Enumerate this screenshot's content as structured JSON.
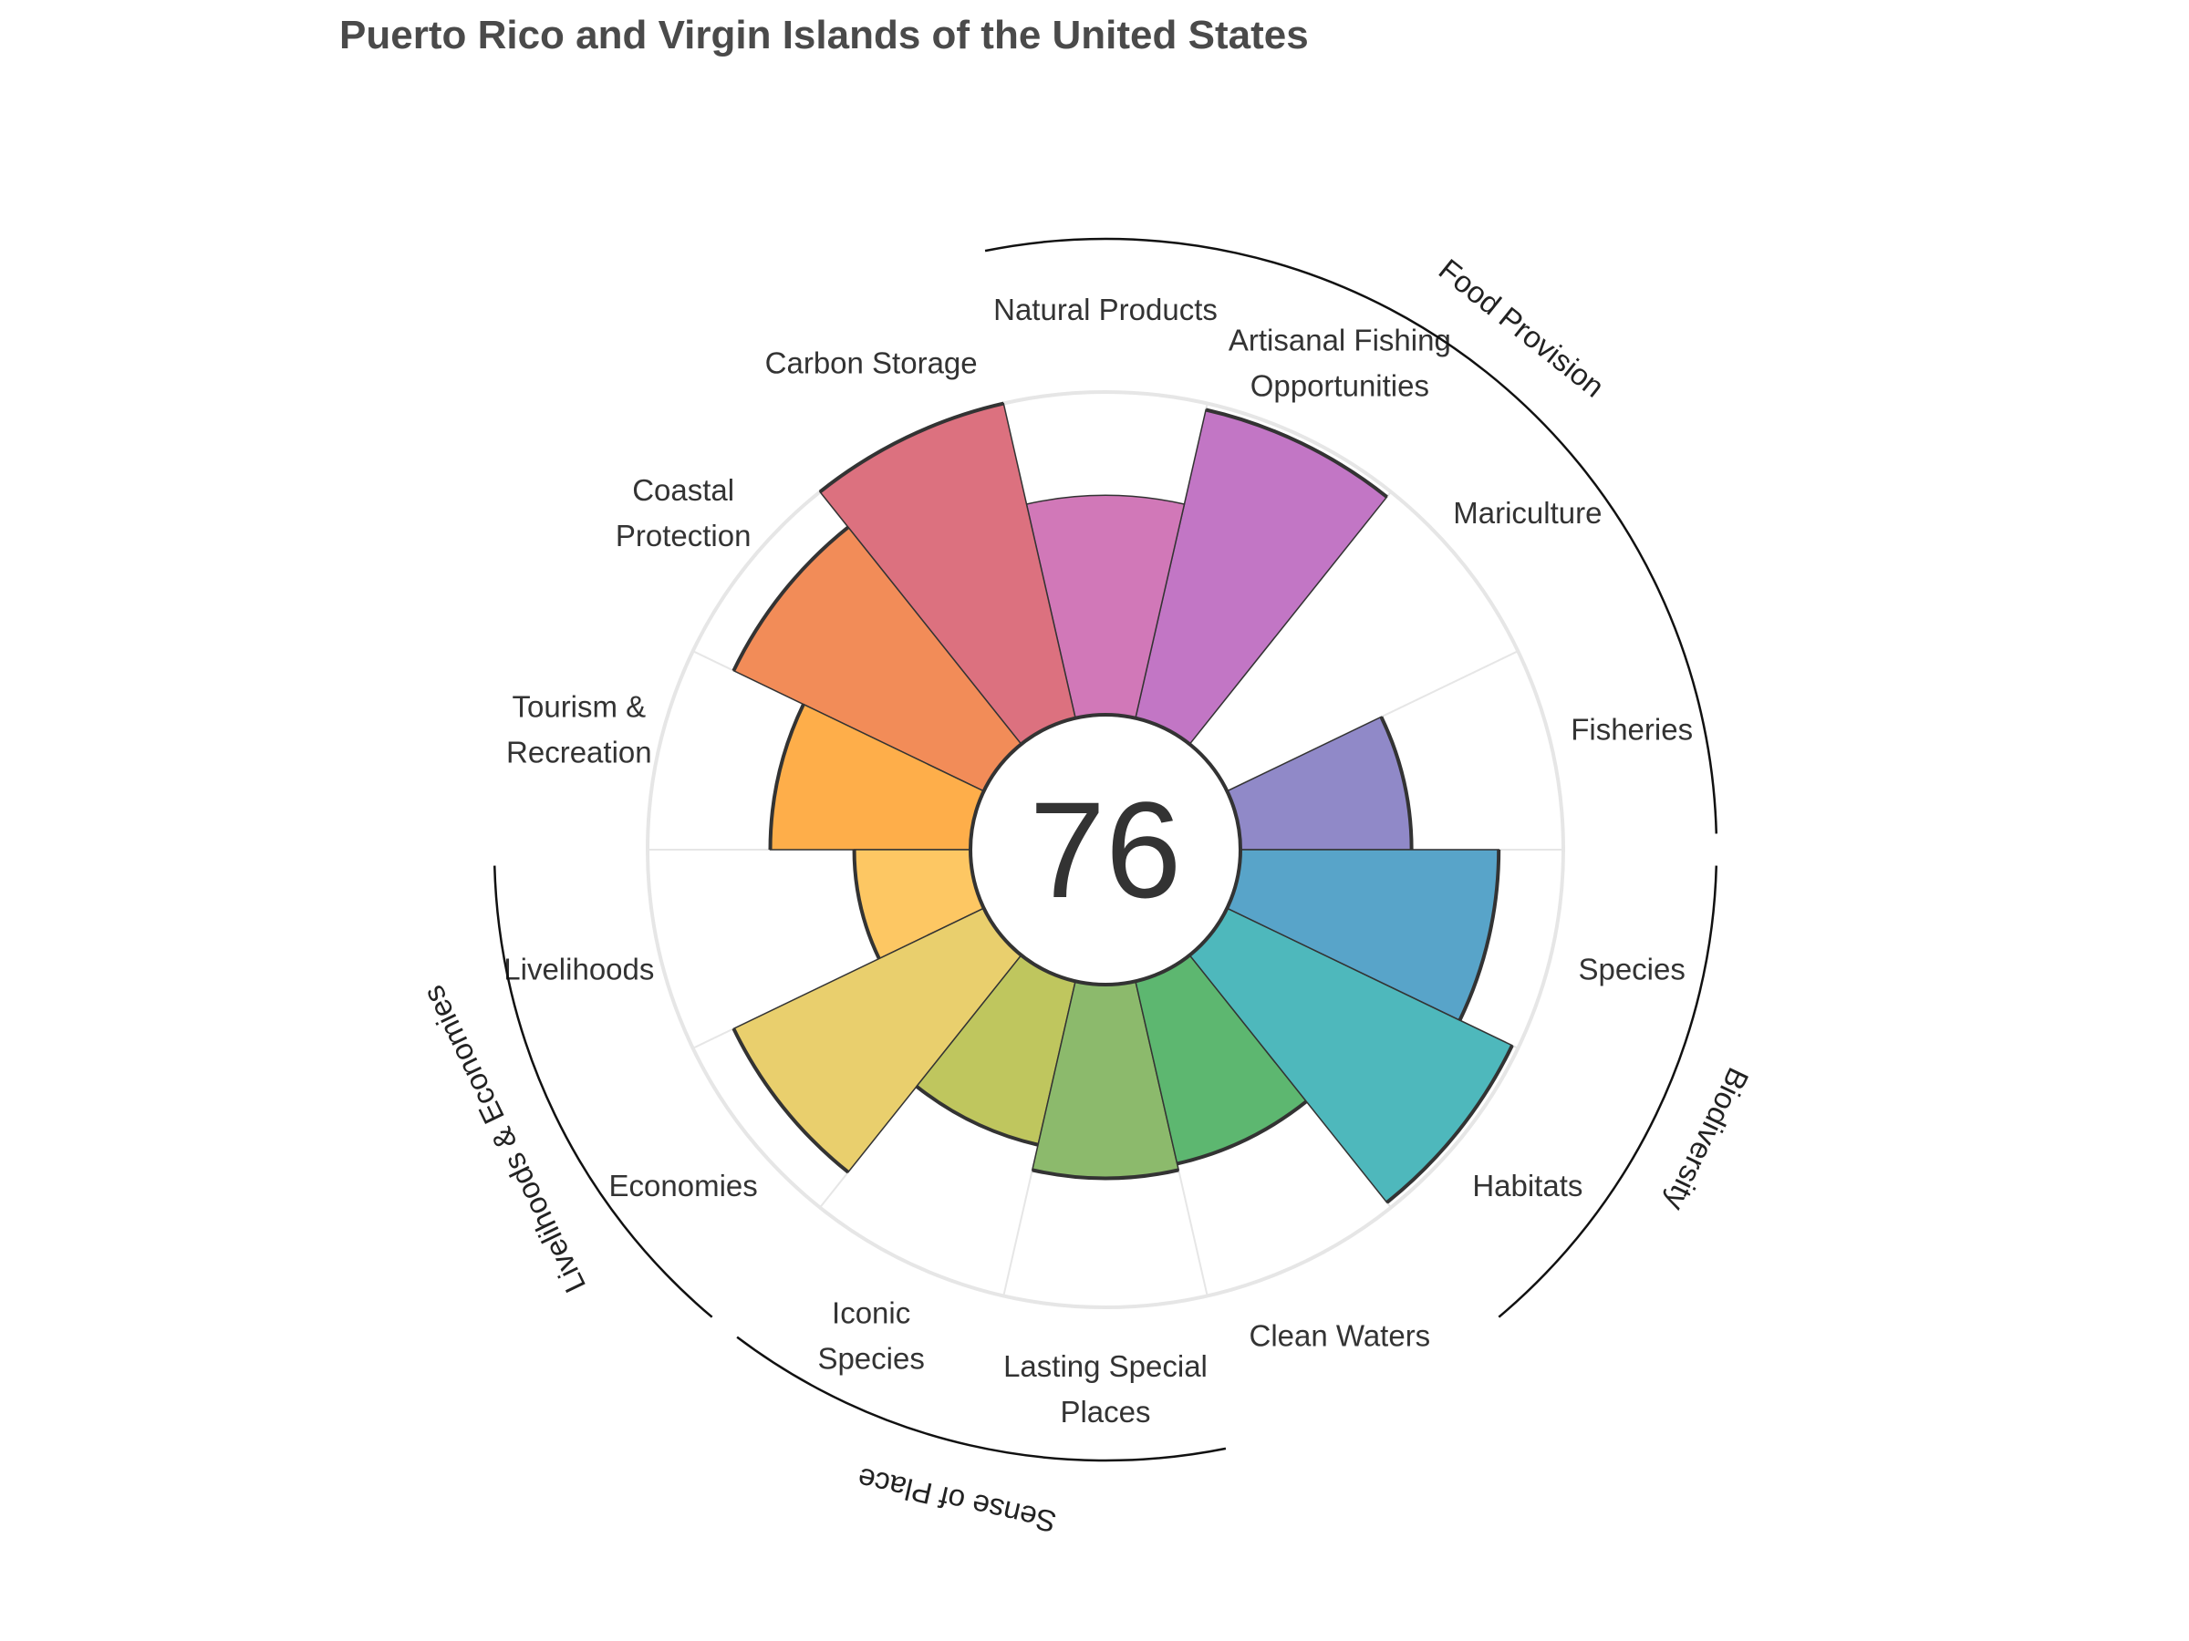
{
  "chart_data": {
    "type": "flower",
    "title": "Puerto Rico and Virgin Islands of the United States",
    "center_score": "76",
    "max_value": 100,
    "petals": [
      {
        "label": [
          "Fisheries"
        ],
        "value": 53,
        "color": "#9089c8",
        "bold": true
      },
      {
        "label": [
          "Mariculture"
        ],
        "value": 0,
        "color": "#b7b0e0",
        "bold": false
      },
      {
        "label": [
          "Artisanal Fishing",
          "Opportunities"
        ],
        "value": 98,
        "color": "#c276c5",
        "bold": true
      },
      {
        "label": [
          "Natural Products"
        ],
        "value": 68,
        "color": "#d178b8",
        "bold": false
      },
      {
        "label": [
          "Carbon Storage"
        ],
        "value": 100,
        "color": "#dc717f",
        "bold": true
      },
      {
        "label": [
          "Coastal",
          "Protection"
        ],
        "value": 86,
        "color": "#f28c58",
        "bold": true
      },
      {
        "label": [
          "Tourism &",
          "Recreation"
        ],
        "value": 62,
        "color": "#feae4a",
        "bold": true
      },
      {
        "label": [
          "Livelihoods"
        ],
        "value": 36,
        "color": "#fdc763",
        "bold": true
      },
      {
        "label": [
          "Economies"
        ],
        "value": 86,
        "color": "#e9cf6d",
        "bold": true
      },
      {
        "label": [
          "Iconic",
          "Species"
        ],
        "value": 52,
        "color": "#bfc65e",
        "bold": true
      },
      {
        "label": [
          "Lasting Special",
          "Places"
        ],
        "value": 60,
        "color": "#8cba6c",
        "bold": true
      },
      {
        "label": [
          "Clean Waters"
        ],
        "value": 58,
        "color": "#5db770",
        "bold": true
      },
      {
        "label": [
          "Habitats"
        ],
        "value": 98,
        "color": "#4eb8bc",
        "bold": true
      },
      {
        "label": [
          "Species"
        ],
        "value": 80,
        "color": "#58a4c9",
        "bold": true
      }
    ],
    "groups": [
      {
        "name": "Food Provision"
      },
      {
        "name": "Biodiversity"
      },
      {
        "name": "Sense of Place"
      },
      {
        "name": "Livelihoods & Economies"
      }
    ]
  }
}
